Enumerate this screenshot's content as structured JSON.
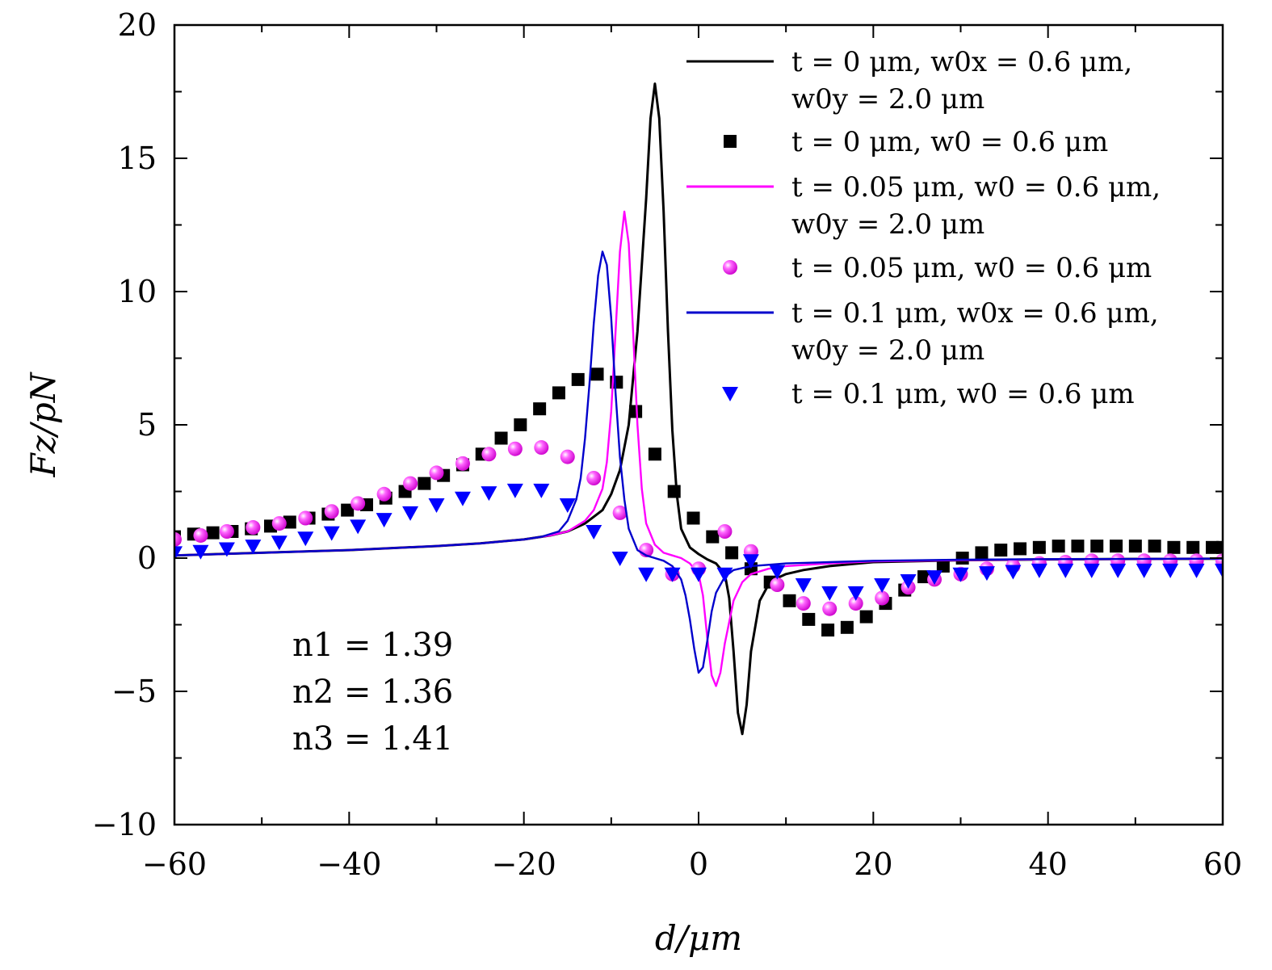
{
  "chart_data": {
    "type": "line",
    "title": "",
    "xlabel": "d/μm",
    "ylabel": "Fz/pN",
    "xlim": [
      -60,
      60
    ],
    "ylim": [
      -10,
      20
    ],
    "xticks": [
      -60,
      -40,
      -20,
      0,
      20,
      40,
      60
    ],
    "yticks": [
      -10,
      -5,
      0,
      5,
      10,
      15,
      20
    ],
    "xtick_labels": [
      "−60",
      "−40",
      "−20",
      "0",
      "20",
      "40",
      "60"
    ],
    "ytick_labels": [
      "−10",
      "−5",
      "0",
      "5",
      "10",
      "15",
      "20"
    ],
    "grid": false,
    "legend_position": "top-right",
    "annotations": [
      "n1 = 1.39",
      "n2 = 1.36",
      "n3 = 1.41"
    ],
    "series": [
      {
        "name": "t = 0 μm, w0x = 0.6 μm, w0y = 2.0 μm",
        "style": "line",
        "color": "#000000",
        "x": [
          -60,
          -50,
          -40,
          -30,
          -25,
          -20,
          -17,
          -15,
          -13,
          -11,
          -10,
          -9,
          -8,
          -7,
          -6,
          -5.5,
          -5,
          -4.5,
          -4,
          -3.5,
          -3,
          -2.5,
          -2,
          -1,
          0,
          1,
          2,
          3,
          3.5,
          4,
          4.5,
          5,
          5.5,
          6,
          7,
          8,
          9,
          10,
          12,
          15,
          20,
          30,
          40,
          60
        ],
        "y": [
          0.1,
          0.2,
          0.3,
          0.45,
          0.55,
          0.7,
          0.85,
          1.0,
          1.3,
          1.8,
          2.4,
          3.3,
          5.0,
          8.5,
          13.5,
          16.5,
          17.8,
          16.5,
          13.0,
          8.5,
          4.8,
          2.4,
          1.1,
          0.4,
          0.15,
          -0.05,
          -0.2,
          -0.6,
          -1.5,
          -3.5,
          -5.8,
          -6.6,
          -5.5,
          -3.5,
          -1.6,
          -1.0,
          -0.75,
          -0.6,
          -0.45,
          -0.3,
          -0.15,
          -0.08,
          -0.05,
          -0.02
        ]
      },
      {
        "name": "t = 0 μm, w0 = 0.6 μm",
        "style": "square",
        "color": "#000000",
        "x": [
          -60,
          -57.8,
          -55.6,
          -53.4,
          -51.2,
          -49,
          -46.8,
          -44.6,
          -42.4,
          -40.2,
          -38,
          -35.8,
          -33.6,
          -31.4,
          -29.2,
          -27,
          -24.8,
          -22.6,
          -20.4,
          -18.2,
          -16,
          -13.8,
          -11.6,
          -9.4,
          -7.2,
          -5,
          -2.8,
          -0.6,
          1.6,
          3.8,
          6,
          8.2,
          10.4,
          12.6,
          14.8,
          17,
          19.2,
          21.4,
          23.6,
          25.8,
          28,
          30.2,
          32.4,
          34.6,
          36.8,
          39,
          41.2,
          43.4,
          45.6,
          47.8,
          50,
          52.2,
          54.4,
          56.6,
          58.8,
          60
        ],
        "y": [
          0.8,
          0.9,
          0.95,
          1.0,
          1.1,
          1.2,
          1.35,
          1.5,
          1.65,
          1.8,
          2.0,
          2.25,
          2.5,
          2.8,
          3.1,
          3.5,
          3.9,
          4.5,
          5.0,
          5.6,
          6.2,
          6.7,
          6.9,
          6.6,
          5.5,
          3.9,
          2.5,
          1.5,
          0.8,
          0.2,
          -0.4,
          -0.9,
          -1.6,
          -2.3,
          -2.7,
          -2.6,
          -2.2,
          -1.7,
          -1.2,
          -0.7,
          -0.3,
          0.0,
          0.2,
          0.3,
          0.35,
          0.4,
          0.45,
          0.45,
          0.45,
          0.45,
          0.45,
          0.45,
          0.4,
          0.4,
          0.4,
          0.4
        ]
      },
      {
        "name": "t = 0.05 μm, w0 = 0.6 μm, w0y = 2.0 μm",
        "style": "line",
        "color": "#ff00ff",
        "x": [
          -60,
          -50,
          -40,
          -30,
          -25,
          -20,
          -17,
          -15,
          -13,
          -12,
          -11,
          -10.5,
          -10,
          -9.5,
          -9,
          -8.5,
          -8,
          -7.5,
          -7,
          -6.5,
          -6,
          -5,
          -4,
          -3,
          -2,
          -1,
          0,
          0.5,
          1,
          1.5,
          2,
          2.5,
          3,
          4,
          5,
          6,
          8,
          10,
          15,
          20,
          30,
          40,
          60
        ],
        "y": [
          0.1,
          0.2,
          0.3,
          0.45,
          0.55,
          0.7,
          0.85,
          1.0,
          1.4,
          1.8,
          2.6,
          3.6,
          5.5,
          8.5,
          11.5,
          13.0,
          11.8,
          8.5,
          5.0,
          2.6,
          1.3,
          0.5,
          0.2,
          0.1,
          0.0,
          -0.2,
          -0.6,
          -1.4,
          -3.0,
          -4.4,
          -4.8,
          -4.3,
          -3.2,
          -1.6,
          -0.9,
          -0.6,
          -0.4,
          -0.3,
          -0.2,
          -0.12,
          -0.08,
          -0.05,
          -0.02
        ]
      },
      {
        "name": "t = 0.05 μm, w0 = 0.6 μm",
        "style": "sphere",
        "color": "#ff00ff",
        "x": [
          -60,
          -57,
          -54,
          -51,
          -48,
          -45,
          -42,
          -39,
          -36,
          -33,
          -30,
          -27,
          -24,
          -21,
          -18,
          -15,
          -12,
          -9,
          -6,
          -3,
          0,
          3,
          6,
          9,
          12,
          15,
          18,
          21,
          24,
          27,
          30,
          33,
          36,
          39,
          42,
          45,
          48,
          51,
          54,
          57,
          60
        ],
        "y": [
          0.7,
          0.85,
          1.0,
          1.15,
          1.3,
          1.5,
          1.75,
          2.05,
          2.4,
          2.8,
          3.2,
          3.55,
          3.9,
          4.1,
          4.15,
          3.8,
          3.0,
          1.7,
          0.3,
          -0.6,
          -0.4,
          1.0,
          0.25,
          -1.0,
          -1.7,
          -1.9,
          -1.7,
          -1.5,
          -1.1,
          -0.8,
          -0.6,
          -0.4,
          -0.3,
          -0.2,
          -0.15,
          -0.1,
          -0.1,
          -0.1,
          -0.1,
          -0.1,
          -0.1
        ]
      },
      {
        "name": "t = 0.1 μm, w0x = 0.6 μm, w0y = 2.0 μm",
        "style": "line",
        "color": "#0000cc",
        "x": [
          -60,
          -50,
          -40,
          -30,
          -25,
          -20,
          -18,
          -16,
          -15,
          -14,
          -13.5,
          -13,
          -12.5,
          -12,
          -11.5,
          -11,
          -10.5,
          -10,
          -9.5,
          -9,
          -8.5,
          -8,
          -7,
          -6,
          -5,
          -4,
          -3,
          -2,
          -1.5,
          -1,
          -0.5,
          0,
          0.5,
          1,
          1.5,
          2,
          3,
          4,
          6,
          8,
          10,
          15,
          20,
          30,
          40,
          60
        ],
        "y": [
          0.1,
          0.2,
          0.3,
          0.45,
          0.55,
          0.7,
          0.8,
          1.0,
          1.4,
          2.2,
          3.0,
          4.5,
          6.5,
          8.8,
          10.6,
          11.5,
          11.0,
          9.0,
          6.2,
          3.8,
          2.2,
          1.1,
          0.3,
          0.1,
          0.0,
          -0.1,
          -0.3,
          -0.8,
          -1.4,
          -2.3,
          -3.4,
          -4.3,
          -4.1,
          -3.1,
          -2.0,
          -1.3,
          -0.7,
          -0.45,
          -0.3,
          -0.25,
          -0.2,
          -0.15,
          -0.1,
          -0.06,
          -0.04,
          -0.02
        ]
      },
      {
        "name": "t = 0.1 μm, w0 = 0.6 μm",
        "style": "triangle",
        "color": "#0000ff",
        "x": [
          -60,
          -57,
          -54,
          -51,
          -48,
          -45,
          -42,
          -39,
          -36,
          -33,
          -30,
          -27,
          -24,
          -21,
          -18,
          -15,
          -12,
          -9,
          -6,
          -3,
          0,
          3,
          6,
          9,
          12,
          15,
          18,
          21,
          24,
          27,
          30,
          33,
          36,
          39,
          42,
          45,
          48,
          51,
          54,
          57,
          60
        ],
        "y": [
          0.2,
          0.25,
          0.35,
          0.45,
          0.6,
          0.75,
          0.95,
          1.2,
          1.45,
          1.7,
          2.0,
          2.25,
          2.45,
          2.55,
          2.55,
          2.0,
          1.0,
          0.0,
          -0.6,
          -0.6,
          -0.6,
          -0.6,
          -0.1,
          -0.5,
          -1.0,
          -1.3,
          -1.3,
          -1.0,
          -0.85,
          -0.7,
          -0.6,
          -0.55,
          -0.5,
          -0.45,
          -0.45,
          -0.45,
          -0.45,
          -0.45,
          -0.45,
          -0.45,
          -0.45
        ]
      }
    ]
  }
}
